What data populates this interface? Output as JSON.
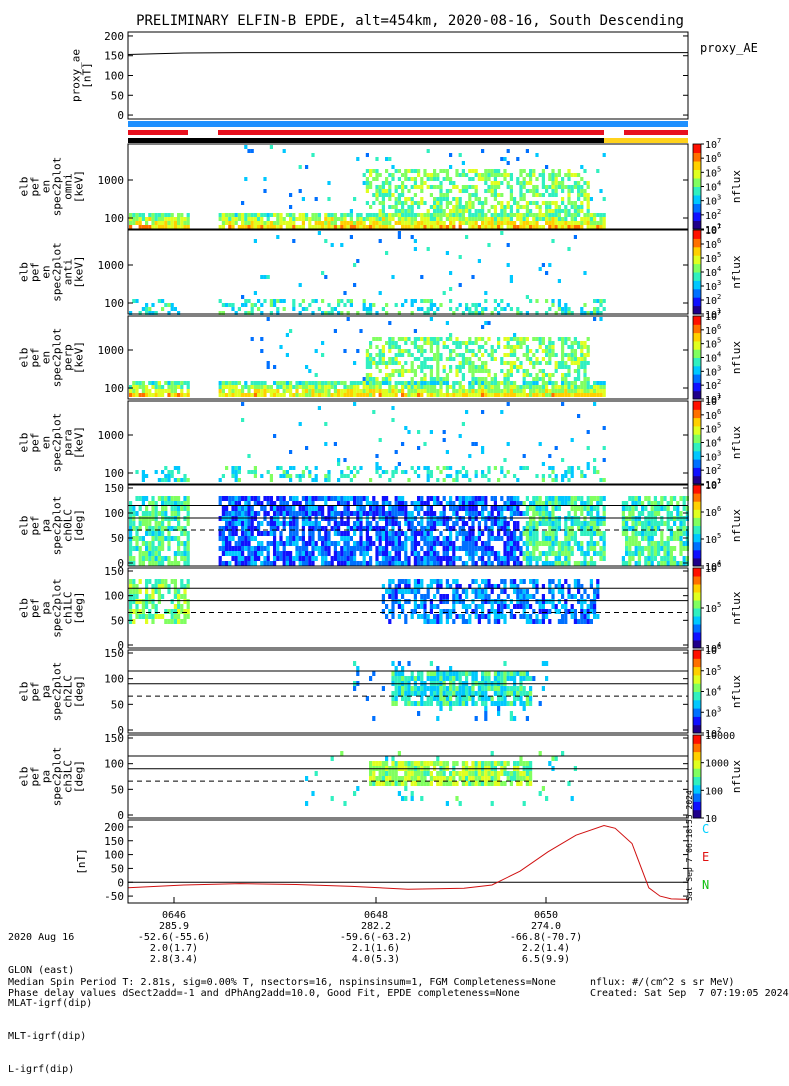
{
  "title": "PRELIMINARY ELFIN-B EPDE, alt=454km, 2020-08-16, South Descending",
  "colors": {
    "bar_blue": "#1e90ff",
    "bar_red": "#e8101e",
    "bar_black": "#000000",
    "bar_yellow": "#ffd21c",
    "trace_red": "#d01010"
  },
  "chart_data": [
    {
      "type": "line",
      "name": "proxy_ae",
      "ylabel_lines": [
        "proxy_ae",
        "[nT]"
      ],
      "right_label": "proxy_AE",
      "yticks": [
        "0",
        "50",
        "100",
        "150",
        "200"
      ],
      "ylim": [
        -10,
        210
      ],
      "x": [
        0,
        0.05,
        0.1,
        0.2,
        0.4,
        0.6,
        0.8,
        1.0
      ],
      "y": [
        153,
        155,
        157,
        158,
        158,
        158,
        158,
        158
      ]
    },
    {
      "type": "heatmap",
      "ylabel_lines": [
        "elb",
        "pef",
        "en",
        "spec2plot",
        "omni",
        "[keV]"
      ],
      "yticks": [
        "100",
        "1000"
      ],
      "cbar_ticks": [
        "10",
        "10",
        "10",
        "10",
        "10",
        "10",
        "10"
      ],
      "cbar_exp": [
        "1",
        "2",
        "3",
        "4",
        "5",
        "6",
        "7"
      ],
      "zlabel": "nflux"
    },
    {
      "type": "heatmap",
      "ylabel_lines": [
        "elb",
        "pef",
        "en",
        "spec2plot",
        "anti",
        "[keV]"
      ],
      "yticks": [
        "100",
        "1000"
      ],
      "cbar_ticks": [
        "10",
        "10",
        "10",
        "10",
        "10",
        "10",
        "10"
      ],
      "cbar_exp": [
        "1",
        "2",
        "3",
        "4",
        "5",
        "6",
        "7"
      ],
      "zlabel": "nflux"
    },
    {
      "type": "heatmap",
      "ylabel_lines": [
        "elb",
        "pef",
        "en",
        "spec2plot",
        "perp",
        "[keV]"
      ],
      "yticks": [
        "100",
        "1000"
      ],
      "cbar_ticks": [
        "10",
        "10",
        "10",
        "10",
        "10",
        "10",
        "10"
      ],
      "cbar_exp": [
        "1",
        "2",
        "3",
        "4",
        "5",
        "6",
        "7"
      ],
      "zlabel": "nflux"
    },
    {
      "type": "heatmap",
      "ylabel_lines": [
        "elb",
        "pef",
        "en",
        "spec2plot",
        "para",
        "[keV]"
      ],
      "yticks": [
        "100",
        "1000"
      ],
      "cbar_ticks": [
        "10",
        "10",
        "10",
        "10",
        "10",
        "10",
        "10"
      ],
      "cbar_exp": [
        "1",
        "2",
        "3",
        "4",
        "5",
        "6",
        "7"
      ],
      "zlabel": "nflux"
    },
    {
      "type": "heatmap",
      "ylabel_lines": [
        "elb",
        "pef",
        "pa",
        "spec2plot",
        "ch0LC",
        "[deg]"
      ],
      "yticks": [
        "0",
        "50",
        "100",
        "150"
      ],
      "cbar_ticks": [
        "10",
        "10",
        "10",
        "10"
      ],
      "cbar_exp": [
        "4",
        "5",
        "6",
        "7"
      ],
      "zlabel": "nflux"
    },
    {
      "type": "heatmap",
      "ylabel_lines": [
        "elb",
        "pef",
        "pa",
        "spec2plot",
        "ch1LC",
        "[deg]"
      ],
      "yticks": [
        "0",
        "50",
        "100",
        "150"
      ],
      "cbar_ticks": [
        "10",
        "10",
        "10"
      ],
      "cbar_exp": [
        "4",
        "5",
        "6"
      ],
      "zlabel": "nflux"
    },
    {
      "type": "heatmap",
      "ylabel_lines": [
        "elb",
        "pef",
        "pa",
        "spec2plot",
        "ch2LC",
        "[deg]"
      ],
      "yticks": [
        "0",
        "50",
        "100",
        "150"
      ],
      "cbar_ticks": [
        "10",
        "10",
        "10",
        "10",
        "10"
      ],
      "cbar_exp": [
        "2",
        "3",
        "4",
        "5",
        "6"
      ],
      "zlabel": "nflux"
    },
    {
      "type": "heatmap",
      "ylabel_lines": [
        "elb",
        "pef",
        "pa",
        "spec2plot",
        "ch3LC",
        "[deg]"
      ],
      "yticks": [
        "0",
        "50",
        "100",
        "150"
      ],
      "cbar_ticks": [
        "10",
        "100",
        "1000",
        "10000"
      ],
      "cbar_exp": [
        "",
        "",
        "",
        ""
      ],
      "zlabel": "nflux"
    },
    {
      "type": "line",
      "ylabel_lines": [
        "[nT]"
      ],
      "yticks": [
        "-50",
        "0",
        "50",
        "100",
        "150",
        "200"
      ],
      "ylim": [
        -75,
        225
      ],
      "legend": [
        "C",
        "E",
        "N"
      ],
      "legend_colors": [
        "#00d0ff",
        "#e01010",
        "#10c010"
      ],
      "side_text": "Sat Sep  7 06:18:55 2024",
      "x": [
        0,
        0.05,
        0.1,
        0.2,
        0.3,
        0.4,
        0.5,
        0.6,
        0.65,
        0.7,
        0.75,
        0.8,
        0.85,
        0.87,
        0.9,
        0.93,
        0.95,
        0.97,
        1.0
      ],
      "y": [
        -20,
        -15,
        -10,
        -5,
        -8,
        -15,
        -25,
        -22,
        -10,
        40,
        110,
        170,
        205,
        195,
        140,
        -20,
        -50,
        -60,
        -62
      ]
    }
  ],
  "axis": {
    "row_labels": [
      "2020 Aug 16",
      "GLON (east)",
      "MLAT-igrf(dip)",
      "MLT-igrf(dip)",
      "L-igrf(dip)"
    ],
    "ticks": [
      {
        "time": "0646",
        "vals": [
          "285.9",
          "-52.6(-55.6)",
          "2.0(1.7)",
          "2.8(3.4)"
        ]
      },
      {
        "time": "0648",
        "vals": [
          "282.2",
          "-59.6(-63.2)",
          "2.1(1.6)",
          "4.0(5.3)"
        ]
      },
      {
        "time": "0650",
        "vals": [
          "274.0",
          "-66.8(-70.7)",
          "2.2(1.4)",
          "6.5(9.9)"
        ]
      }
    ]
  },
  "footer": {
    "line1": "Median Spin Period T: 2.81s, sig=0.00% T, nsectors=16, nspinsinsum=1, FGM Completeness=None",
    "line2": "Phase delay values dSect2add=-1 and dPhAng2add=10.0, Good Fit, EPDE completeness=None",
    "right1": "nflux: #/(cm^2 s sr MeV)",
    "right2": "Created: Sat Sep  7 07:19:05 2024"
  }
}
